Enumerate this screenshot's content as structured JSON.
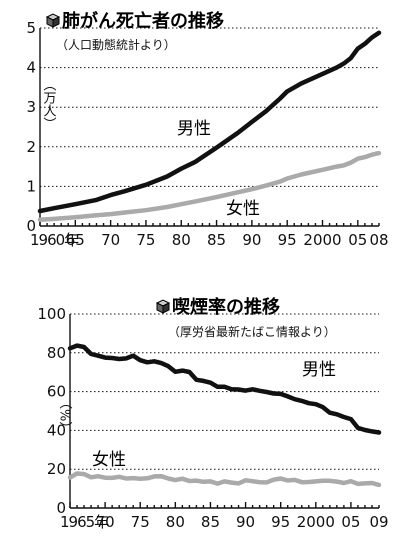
{
  "chart_data": [
    {
      "type": "line",
      "title": "肺がん死亡者の推移",
      "source": "（人口動態統計より）",
      "ylabel": "（万人）",
      "ylim": [
        0,
        5
      ],
      "xlim": [
        1960,
        2008
      ],
      "grid": true,
      "yticks": [
        {
          "v": 0,
          "label": "0"
        },
        {
          "v": 1,
          "label": "1"
        },
        {
          "v": 2,
          "label": "2"
        },
        {
          "v": 3,
          "label": "3"
        },
        {
          "v": 4,
          "label": "4"
        },
        {
          "v": 5,
          "label": "5"
        }
      ],
      "xticks": [
        {
          "v": 1960,
          "label": "1960年"
        },
        {
          "v": 1965,
          "label": "65"
        },
        {
          "v": 1970,
          "label": "70"
        },
        {
          "v": 1975,
          "label": "75"
        },
        {
          "v": 1980,
          "label": "80"
        },
        {
          "v": 1985,
          "label": "85"
        },
        {
          "v": 1990,
          "label": "90"
        },
        {
          "v": 1995,
          "label": "95"
        },
        {
          "v": 2000,
          "label": "2000"
        },
        {
          "v": 2005,
          "label": "05"
        },
        {
          "v": 2008,
          "label": "08"
        }
      ],
      "series": [
        {
          "name": "男性",
          "color": "#111111",
          "x": [
            1960,
            1962,
            1965,
            1968,
            1970,
            1972,
            1975,
            1978,
            1980,
            1982,
            1985,
            1988,
            1990,
            1992,
            1994,
            1995,
            1997,
            2000,
            2002,
            2003,
            2004,
            2005,
            2006,
            2007,
            2008
          ],
          "y": [
            0.38,
            0.45,
            0.55,
            0.66,
            0.78,
            0.88,
            1.04,
            1.25,
            1.45,
            1.62,
            1.98,
            2.35,
            2.63,
            2.9,
            3.22,
            3.4,
            3.6,
            3.84,
            4.0,
            4.1,
            4.24,
            4.48,
            4.6,
            4.76,
            4.88
          ]
        },
        {
          "name": "女性",
          "color": "#aaaaaa",
          "x": [
            1960,
            1962,
            1965,
            1968,
            1970,
            1972,
            1975,
            1978,
            1980,
            1982,
            1985,
            1988,
            1990,
            1992,
            1994,
            1995,
            1997,
            2000,
            2002,
            2003,
            2004,
            2005,
            2006,
            2007,
            2008
          ],
          "y": [
            0.16,
            0.18,
            0.22,
            0.27,
            0.3,
            0.34,
            0.4,
            0.48,
            0.55,
            0.62,
            0.73,
            0.85,
            0.93,
            1.02,
            1.12,
            1.2,
            1.3,
            1.42,
            1.5,
            1.53,
            1.6,
            1.7,
            1.74,
            1.8,
            1.84
          ]
        }
      ]
    },
    {
      "type": "line",
      "title": "喫煙率の推移",
      "source": "（厚労省最新たばこ情報より）",
      "ylabel": "（%）",
      "ylim": [
        0,
        100
      ],
      "xlim": [
        1965,
        2009
      ],
      "grid": true,
      "yticks": [
        {
          "v": 0,
          "label": "0"
        },
        {
          "v": 20,
          "label": "20"
        },
        {
          "v": 40,
          "label": "40"
        },
        {
          "v": 60,
          "label": "60"
        },
        {
          "v": 80,
          "label": "80"
        },
        {
          "v": 100,
          "label": "100"
        }
      ],
      "xticks": [
        {
          "v": 1965,
          "label": "1965年"
        },
        {
          "v": 1970,
          "label": "70"
        },
        {
          "v": 1975,
          "label": "75"
        },
        {
          "v": 1980,
          "label": "80"
        },
        {
          "v": 1985,
          "label": "85"
        },
        {
          "v": 1990,
          "label": "90"
        },
        {
          "v": 1995,
          "label": "95"
        },
        {
          "v": 2000,
          "label": "2000"
        },
        {
          "v": 2005,
          "label": "05"
        },
        {
          "v": 2009,
          "label": "09"
        }
      ],
      "series": [
        {
          "name": "男性",
          "color": "#111111",
          "x": [
            1965,
            1966,
            1967,
            1968,
            1969,
            1970,
            1971,
            1972,
            1973,
            1974,
            1975,
            1976,
            1977,
            1978,
            1979,
            1980,
            1981,
            1982,
            1983,
            1984,
            1985,
            1986,
            1987,
            1988,
            1989,
            1990,
            1991,
            1992,
            1993,
            1994,
            1995,
            1996,
            1997,
            1998,
            1999,
            2000,
            2001,
            2002,
            2003,
            2004,
            2005,
            2006,
            2007,
            2008,
            2009
          ],
          "y": [
            82.3,
            83.7,
            83.0,
            79.4,
            78.5,
            77.5,
            77.3,
            76.8,
            77.1,
            78.5,
            76.2,
            75.1,
            75.6,
            74.7,
            73.1,
            70.2,
            70.8,
            70.1,
            66.1,
            65.5,
            64.6,
            62.5,
            62.5,
            61.2,
            61.1,
            60.5,
            61.2,
            60.4,
            59.8,
            59.0,
            58.8,
            57.5,
            56.1,
            55.2,
            54.0,
            53.5,
            52.0,
            49.1,
            48.3,
            46.9,
            45.8,
            41.3,
            40.2,
            39.5,
            38.9
          ]
        },
        {
          "name": "女性",
          "color": "#aaaaaa",
          "x": [
            1965,
            1966,
            1967,
            1968,
            1969,
            1970,
            1971,
            1972,
            1973,
            1974,
            1975,
            1976,
            1977,
            1978,
            1979,
            1980,
            1981,
            1982,
            1983,
            1984,
            1985,
            1986,
            1987,
            1988,
            1989,
            1990,
            1991,
            1992,
            1993,
            1994,
            1995,
            1996,
            1997,
            1998,
            1999,
            2000,
            2001,
            2002,
            2003,
            2004,
            2005,
            2006,
            2007,
            2008,
            2009
          ],
          "y": [
            15.7,
            17.8,
            17.5,
            15.8,
            16.4,
            15.6,
            15.5,
            16.1,
            15.2,
            15.4,
            15.1,
            15.3,
            16.3,
            16.4,
            15.2,
            14.4,
            15.1,
            13.9,
            14.1,
            13.5,
            13.7,
            12.6,
            13.7,
            13.1,
            12.7,
            14.3,
            13.8,
            13.3,
            13.2,
            14.6,
            15.2,
            14.2,
            14.5,
            13.3,
            13.4,
            13.7,
            14.0,
            14.0,
            13.6,
            12.9,
            13.8,
            12.4,
            12.7,
            12.9,
            11.9
          ]
        }
      ]
    }
  ]
}
